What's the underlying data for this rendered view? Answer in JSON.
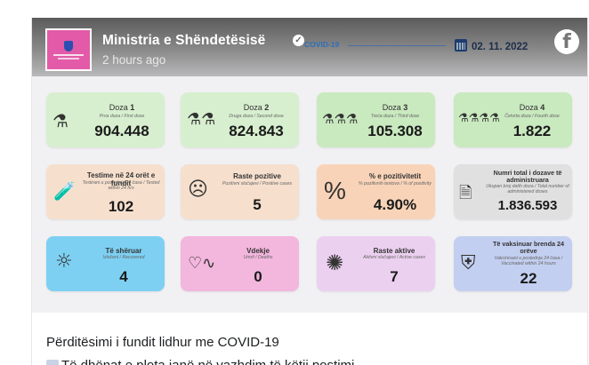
{
  "post": {
    "page_name": "Ministria e Shëndetësisë",
    "time": "2 hours ago",
    "caption": "Përditësimi i fundit lidhur me COVID-19",
    "second_line": "Të dhënat e plota janë në vazhdim të këtij postimi."
  },
  "infographic": {
    "covid_tag": "COVID-19",
    "date": "02. 11. 2022",
    "doses": [
      {
        "title": "Doza",
        "num": "1",
        "sub": "Prva doza / First dose",
        "value": "904.448",
        "color": "#d7efcf"
      },
      {
        "title": "Doza",
        "num": "2",
        "sub": "Druga doza / Second dose",
        "value": "824.843",
        "color": "#d7efcf"
      },
      {
        "title": "Doza",
        "num": "3",
        "sub": "Treća doza / Third dose",
        "value": "105.308",
        "color": "#c9e9bf"
      },
      {
        "title": "Doza",
        "num": "4",
        "sub": "Četvrta doza / Fourth dose",
        "value": "1.822",
        "color": "#c9e9bf"
      }
    ],
    "row2": [
      {
        "title": "Testime në 24 orët e fundit",
        "sub": "Testirani u poslednja 24 časa / Tested within 24 hrs",
        "value": "102",
        "color": "#f6dfcd"
      },
      {
        "title": "Raste pozitive",
        "sub": "Pozitivni slučajevi / Positive cases",
        "value": "5",
        "color": "#f6dfcd"
      },
      {
        "title": "% e pozitivitetit",
        "sub": "% pozitivnih testova / % of positivity",
        "value": "4.90%",
        "color": "#f8d3b8"
      },
      {
        "title": "Numri total i dozave të administruara",
        "sub": "Ukupan broj datih doza / Total number of administered doses",
        "value": "1.836.593",
        "color": "#e0e0e0"
      }
    ],
    "row3": [
      {
        "title": "Të shëruar",
        "sub": "Izlečeni / Recovered",
        "value": "4",
        "color": "#7ed0f2"
      },
      {
        "title": "Vdekje",
        "sub": "Umrli / Deaths",
        "value": "0",
        "color": "#f3b6dd"
      },
      {
        "title": "Raste aktive",
        "sub": "Aktivni slučajevi / Active cases",
        "value": "7",
        "color": "#ecd0f0"
      },
      {
        "title": "Të vaksinuar brenda 24 orëve",
        "sub": "Vakcinisani u poslednja 24 časa / Vaccinated within 24 hours",
        "value": "22",
        "color": "#c3cff0"
      }
    ]
  },
  "icons": {
    "verified": "check-badge-icon",
    "facebook": "facebook-logo-icon",
    "calendar": "calendar-icon"
  }
}
